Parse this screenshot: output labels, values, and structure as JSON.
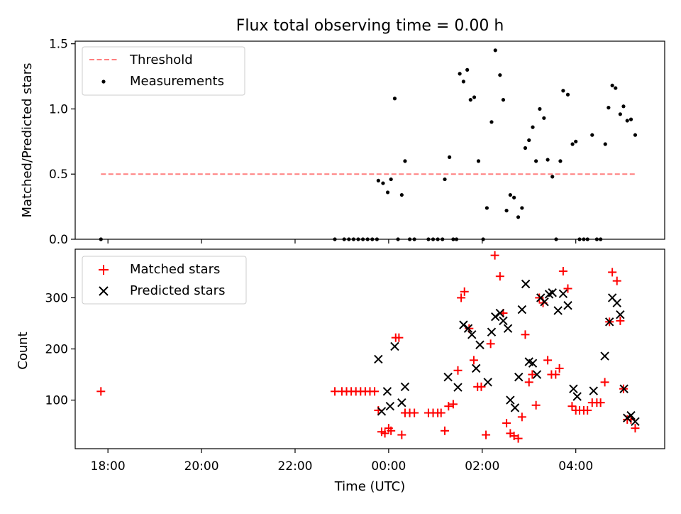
{
  "figure": {
    "title": "Flux total observing time = 0.00 h",
    "xlabel": "Time (UTC)",
    "xtick_labels": [
      "18:00",
      "20:00",
      "22:00",
      "00:00",
      "02:00",
      "04:00"
    ]
  },
  "chart_data": [
    {
      "type": "scatter",
      "panel": "top",
      "ylabel": "Matched/Predicted stars",
      "ylim": [
        0,
        1.52
      ],
      "yticks": [
        "0.0",
        "0.5",
        "1.0",
        "1.5"
      ],
      "xlim_hours": [
        17.3,
        29.9
      ],
      "xticks_hours": [
        18,
        20,
        22,
        24,
        26,
        28
      ],
      "legend": {
        "position": "top-left",
        "entries": [
          "Threshold",
          "Measurements"
        ]
      },
      "threshold": {
        "name": "Threshold",
        "value": 0.5,
        "x_from": 17.85,
        "x_to": 29.27,
        "color": "#ff7f7f"
      },
      "series": [
        {
          "name": "Measurements",
          "color": "#000000",
          "points": [
            [
              17.85,
              0
            ],
            [
              22.85,
              0
            ],
            [
              23.05,
              0
            ],
            [
              23.15,
              0
            ],
            [
              23.25,
              0
            ],
            [
              23.35,
              0
            ],
            [
              23.45,
              0
            ],
            [
              23.55,
              0
            ],
            [
              23.65,
              0
            ],
            [
              23.75,
              0
            ],
            [
              23.78,
              0.45
            ],
            [
              23.88,
              0.43
            ],
            [
              23.98,
              0.36
            ],
            [
              24.05,
              0.46
            ],
            [
              24.13,
              1.08
            ],
            [
              24.2,
              0
            ],
            [
              24.28,
              0.34
            ],
            [
              24.35,
              0.6
            ],
            [
              24.45,
              0
            ],
            [
              24.55,
              0
            ],
            [
              24.85,
              0
            ],
            [
              24.95,
              0
            ],
            [
              25.05,
              0
            ],
            [
              25.15,
              0
            ],
            [
              25.2,
              0.46
            ],
            [
              25.3,
              0.63
            ],
            [
              25.38,
              0
            ],
            [
              25.45,
              0
            ],
            [
              25.52,
              1.27
            ],
            [
              25.6,
              1.21
            ],
            [
              25.68,
              1.3
            ],
            [
              25.75,
              1.07
            ],
            [
              25.83,
              1.09
            ],
            [
              25.92,
              0.6
            ],
            [
              26.02,
              0
            ],
            [
              26.1,
              0.24
            ],
            [
              26.2,
              0.9
            ],
            [
              26.28,
              1.45
            ],
            [
              26.38,
              1.26
            ],
            [
              26.45,
              1.07
            ],
            [
              26.52,
              0.22
            ],
            [
              26.6,
              0.34
            ],
            [
              26.68,
              0.32
            ],
            [
              26.77,
              0.17
            ],
            [
              26.85,
              0.24
            ],
            [
              26.92,
              0.7
            ],
            [
              27.0,
              0.76
            ],
            [
              27.08,
              0.86
            ],
            [
              27.15,
              0.6
            ],
            [
              27.23,
              1.0
            ],
            [
              27.32,
              0.93
            ],
            [
              27.4,
              0.61
            ],
            [
              27.5,
              0.48
            ],
            [
              27.58,
              0
            ],
            [
              27.67,
              0.6
            ],
            [
              27.73,
              1.14
            ],
            [
              27.83,
              1.11
            ],
            [
              27.93,
              0.73
            ],
            [
              28.0,
              0.75
            ],
            [
              28.08,
              0
            ],
            [
              28.17,
              0
            ],
            [
              28.25,
              0
            ],
            [
              28.35,
              0.8
            ],
            [
              28.45,
              0
            ],
            [
              28.53,
              0
            ],
            [
              28.63,
              0.73
            ],
            [
              28.7,
              1.01
            ],
            [
              28.78,
              1.18
            ],
            [
              28.85,
              1.16
            ],
            [
              28.95,
              0.96
            ],
            [
              29.02,
              1.02
            ],
            [
              29.1,
              0.91
            ],
            [
              29.18,
              0.92
            ],
            [
              29.27,
              0.8
            ]
          ]
        }
      ]
    },
    {
      "type": "scatter",
      "panel": "bottom",
      "ylabel": "Count",
      "ylim": [
        5,
        395
      ],
      "yticks": [
        "100",
        "200",
        "300"
      ],
      "xlim_hours": [
        17.3,
        29.9
      ],
      "xticks_hours": [
        18,
        20,
        22,
        24,
        26,
        28
      ],
      "legend": {
        "position": "top-left",
        "entries": [
          "Matched stars",
          "Predicted stars"
        ]
      },
      "series": [
        {
          "name": "Matched stars",
          "marker": "plus",
          "color": "#ff0000",
          "points": [
            [
              17.85,
              117
            ],
            [
              22.85,
              117
            ],
            [
              23.0,
              117
            ],
            [
              23.1,
              117
            ],
            [
              23.2,
              117
            ],
            [
              23.3,
              117
            ],
            [
              23.4,
              117
            ],
            [
              23.5,
              117
            ],
            [
              23.6,
              117
            ],
            [
              23.7,
              117
            ],
            [
              23.78,
              80
            ],
            [
              23.85,
              38
            ],
            [
              23.92,
              35
            ],
            [
              24.0,
              45
            ],
            [
              24.05,
              40
            ],
            [
              24.15,
              222
            ],
            [
              24.22,
              222
            ],
            [
              24.28,
              32
            ],
            [
              24.35,
              75
            ],
            [
              24.45,
              75
            ],
            [
              24.55,
              75
            ],
            [
              24.85,
              75
            ],
            [
              24.95,
              75
            ],
            [
              25.05,
              75
            ],
            [
              25.12,
              75
            ],
            [
              25.2,
              40
            ],
            [
              25.28,
              88
            ],
            [
              25.38,
              92
            ],
            [
              25.48,
              158
            ],
            [
              25.55,
              300
            ],
            [
              25.62,
              312
            ],
            [
              25.72,
              240
            ],
            [
              25.82,
              178
            ],
            [
              25.9,
              126
            ],
            [
              25.98,
              126
            ],
            [
              26.08,
              32
            ],
            [
              26.18,
              210
            ],
            [
              26.27,
              383
            ],
            [
              26.38,
              342
            ],
            [
              26.45,
              270
            ],
            [
              26.52,
              55
            ],
            [
              26.6,
              35
            ],
            [
              26.68,
              30
            ],
            [
              26.77,
              25
            ],
            [
              26.85,
              67
            ],
            [
              26.92,
              228
            ],
            [
              27.0,
              135
            ],
            [
              27.07,
              150
            ],
            [
              27.15,
              90
            ],
            [
              27.22,
              300
            ],
            [
              27.3,
              290
            ],
            [
              27.4,
              178
            ],
            [
              27.48,
              150
            ],
            [
              27.57,
              150
            ],
            [
              27.65,
              162
            ],
            [
              27.73,
              352
            ],
            [
              27.83,
              318
            ],
            [
              27.92,
              88
            ],
            [
              28.0,
              80
            ],
            [
              28.08,
              80
            ],
            [
              28.17,
              80
            ],
            [
              28.25,
              80
            ],
            [
              28.35,
              95
            ],
            [
              28.45,
              95
            ],
            [
              28.53,
              95
            ],
            [
              28.62,
              135
            ],
            [
              28.72,
              253
            ],
            [
              28.78,
              350
            ],
            [
              28.88,
              333
            ],
            [
              28.95,
              255
            ],
            [
              29.02,
              122
            ],
            [
              29.1,
              62
            ],
            [
              29.18,
              62
            ],
            [
              29.27,
              45
            ]
          ]
        },
        {
          "name": "Predicted stars",
          "marker": "x",
          "color": "#000000",
          "points": [
            [
              23.78,
              180
            ],
            [
              23.85,
              78
            ],
            [
              23.97,
              117
            ],
            [
              24.03,
              88
            ],
            [
              24.13,
              205
            ],
            [
              24.28,
              95
            ],
            [
              24.35,
              126
            ],
            [
              25.27,
              145
            ],
            [
              25.48,
              125
            ],
            [
              25.6,
              247
            ],
            [
              25.7,
              240
            ],
            [
              25.78,
              228
            ],
            [
              25.87,
              162
            ],
            [
              25.95,
              208
            ],
            [
              26.12,
              135
            ],
            [
              26.2,
              233
            ],
            [
              26.28,
              263
            ],
            [
              26.38,
              270
            ],
            [
              26.45,
              255
            ],
            [
              26.55,
              240
            ],
            [
              26.6,
              100
            ],
            [
              26.7,
              85
            ],
            [
              26.78,
              145
            ],
            [
              26.85,
              277
            ],
            [
              26.93,
              327
            ],
            [
              27.0,
              175
            ],
            [
              27.08,
              172
            ],
            [
              27.17,
              150
            ],
            [
              27.25,
              300
            ],
            [
              27.33,
              292
            ],
            [
              27.43,
              307
            ],
            [
              27.5,
              310
            ],
            [
              27.62,
              275
            ],
            [
              27.73,
              308
            ],
            [
              27.83,
              285
            ],
            [
              27.95,
              122
            ],
            [
              28.03,
              107
            ],
            [
              28.38,
              118
            ],
            [
              28.62,
              186
            ],
            [
              28.72,
              253
            ],
            [
              28.78,
              300
            ],
            [
              28.88,
              290
            ],
            [
              28.95,
              267
            ],
            [
              29.03,
              122
            ],
            [
              29.1,
              65
            ],
            [
              29.18,
              70
            ],
            [
              29.27,
              58
            ]
          ]
        }
      ]
    }
  ]
}
